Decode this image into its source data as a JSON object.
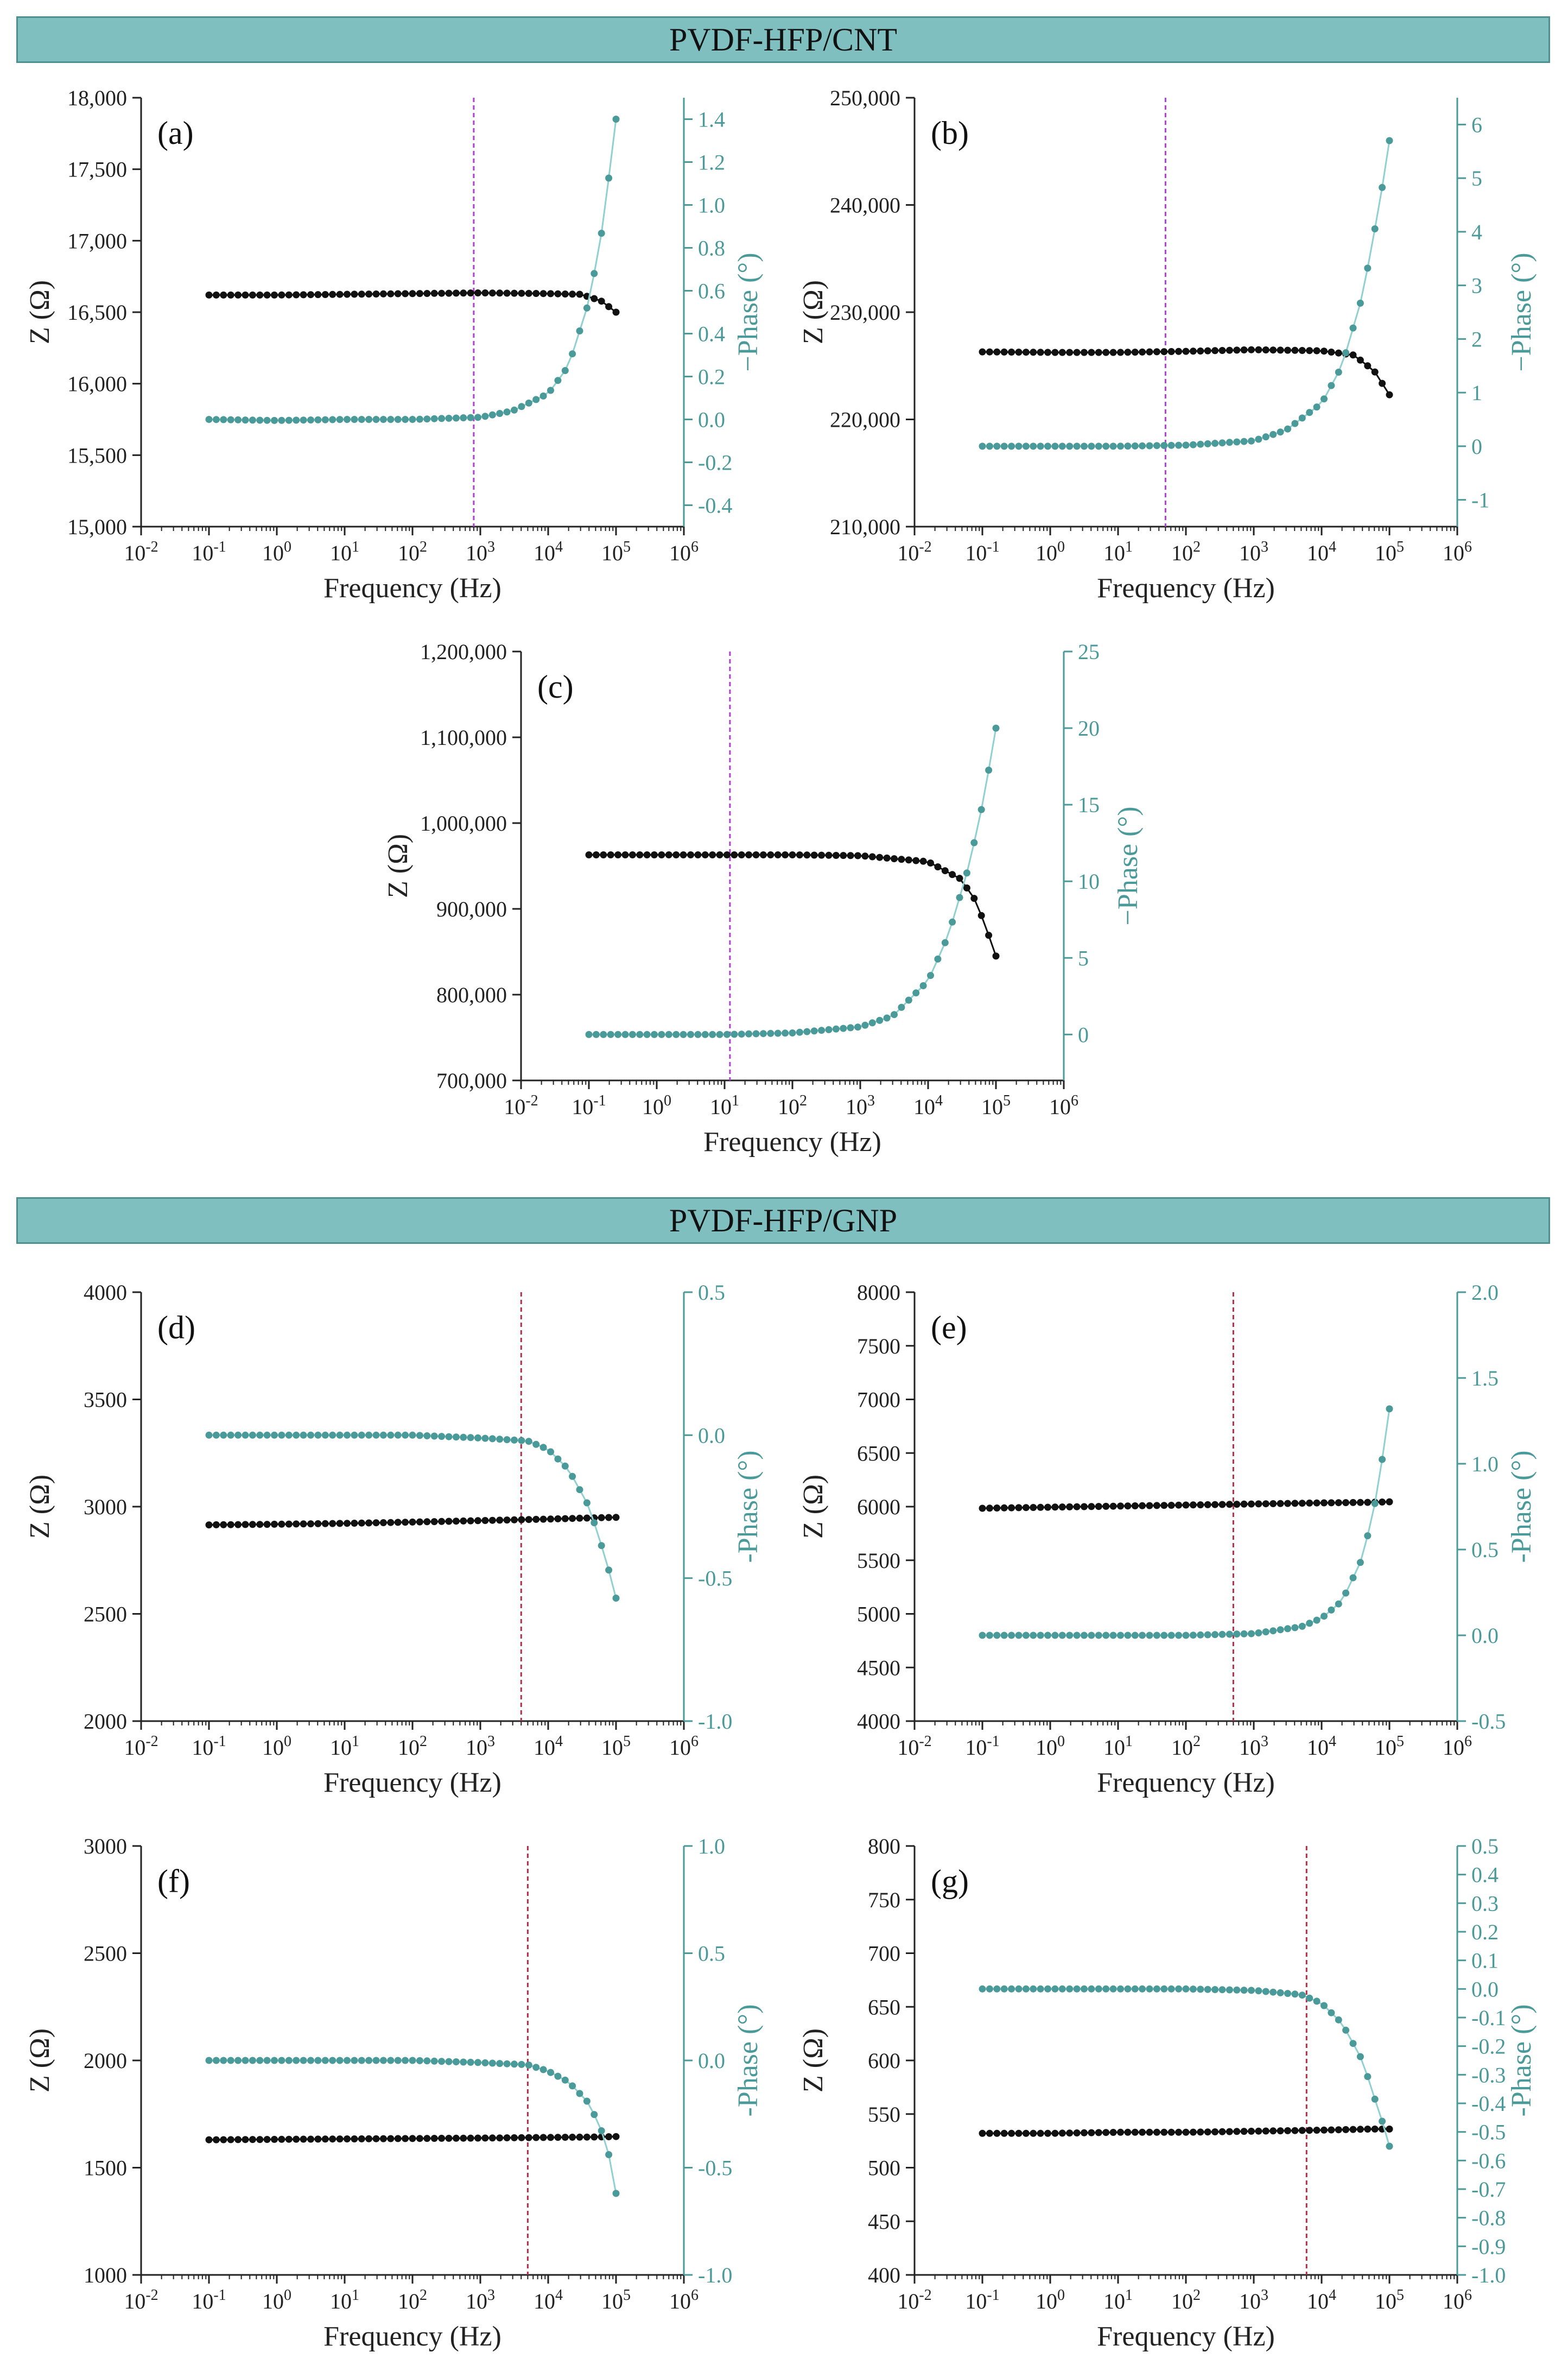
{
  "sections": [
    {
      "title": "PVDF-HFP/CNT"
    },
    {
      "title": "PVDF-HFP/GNP"
    }
  ],
  "colors": {
    "banner": "#7fbfbf",
    "impedance": "#111111",
    "phase": "#4a9a9a",
    "phase_line": "#8fd0d0",
    "marker_line": "#b040d0",
    "marker_line_gnp": "#b0304a"
  },
  "chart_data": [
    {
      "id": "a",
      "type": "scatter",
      "panel_label": "(a)",
      "xlabel": "Frequency (Hz)",
      "ylabel": "Z (Ω)",
      "y2label": "−Phase (°)",
      "xlim_exp": [
        -2,
        6
      ],
      "ylim": [
        15000,
        18000
      ],
      "yticks": [
        15000,
        15500,
        16000,
        16500,
        17000,
        17500,
        18000
      ],
      "ytick_labels": [
        "15,000",
        "15,500",
        "16,000",
        "16,500",
        "17,000",
        "17,500",
        "18,000"
      ],
      "y2lim": [
        -0.5,
        1.5
      ],
      "y2ticks": [
        -0.4,
        -0.2,
        0.0,
        0.2,
        0.4,
        0.6,
        0.8,
        1.0,
        1.2,
        1.4
      ],
      "y2tick_labels": [
        "-0.4",
        "-0.2",
        "0.0",
        "0.2",
        "0.4",
        "0.6",
        "0.8",
        "1.0",
        "1.2",
        "1.4"
      ],
      "vline_hz": 800,
      "vline_color": "#b040d0",
      "series": [
        {
          "name": "Z (Ω)",
          "axis": "left",
          "points": [
            [
              0.1,
              16620
            ],
            [
              1,
              16620
            ],
            [
              10,
              16625
            ],
            [
              100,
              16630
            ],
            [
              1000,
              16635
            ],
            [
              10000,
              16630
            ],
            [
              30000,
              16625
            ],
            [
              60000,
              16580
            ],
            [
              100000,
              16500
            ]
          ]
        },
        {
          "name": "−Phase (°)",
          "axis": "right",
          "points": [
            [
              0.1,
              0.0
            ],
            [
              1,
              -0.005
            ],
            [
              10,
              0.0
            ],
            [
              100,
              0.0
            ],
            [
              1000,
              0.01
            ],
            [
              3000,
              0.04
            ],
            [
              10000,
              0.12
            ],
            [
              20000,
              0.25
            ],
            [
              40000,
              0.55
            ],
            [
              60000,
              0.85
            ],
            [
              80000,
              1.15
            ],
            [
              100000,
              1.4
            ]
          ]
        }
      ]
    },
    {
      "id": "b",
      "type": "scatter",
      "panel_label": "(b)",
      "xlabel": "Frequency (Hz)",
      "ylabel": "Z (Ω)",
      "y2label": "−Phase (°)",
      "xlim_exp": [
        -2,
        6
      ],
      "ylim": [
        210000,
        250000
      ],
      "yticks": [
        210000,
        220000,
        230000,
        240000,
        250000
      ],
      "ytick_labels": [
        "210,000",
        "220,000",
        "230,000",
        "240,000",
        "250,000"
      ],
      "y2lim": [
        -1.5,
        6.5
      ],
      "y2ticks": [
        -1,
        0,
        1,
        2,
        3,
        4,
        5,
        6
      ],
      "y2tick_labels": [
        "-1",
        "0",
        "1",
        "2",
        "3",
        "4",
        "5",
        "6"
      ],
      "vline_hz": 50,
      "vline_color": "#b040d0",
      "series": [
        {
          "name": "Z (Ω)",
          "axis": "left",
          "points": [
            [
              0.1,
              226300
            ],
            [
              1,
              226250
            ],
            [
              10,
              226250
            ],
            [
              100,
              226350
            ],
            [
              1000,
              226500
            ],
            [
              10000,
              226400
            ],
            [
              30000,
              226000
            ],
            [
              60000,
              224500
            ],
            [
              100000,
              222300
            ]
          ]
        },
        {
          "name": "−Phase (°)",
          "axis": "right",
          "points": [
            [
              0.1,
              0.0
            ],
            [
              1,
              0.0
            ],
            [
              10,
              0.0
            ],
            [
              100,
              0.02
            ],
            [
              1000,
              0.1
            ],
            [
              3000,
              0.3
            ],
            [
              10000,
              0.8
            ],
            [
              20000,
              1.5
            ],
            [
              40000,
              2.8
            ],
            [
              60000,
              4.0
            ],
            [
              80000,
              4.9
            ],
            [
              100000,
              5.7
            ]
          ]
        }
      ]
    },
    {
      "id": "c",
      "type": "scatter",
      "panel_label": "(c)",
      "xlabel": "Frequency (Hz)",
      "ylabel": "Z (Ω)",
      "y2label": "−Phase (°)",
      "xlim_exp": [
        -2,
        6
      ],
      "ylim": [
        700000,
        1200000
      ],
      "yticks": [
        700000,
        800000,
        900000,
        1000000,
        1100000,
        1200000
      ],
      "ytick_labels": [
        "700,000",
        "800,000",
        "900,000",
        "1,000,000",
        "1,100,000",
        "1,200,000"
      ],
      "y2lim": [
        -3,
        25
      ],
      "y2ticks": [
        0,
        5,
        10,
        15,
        20,
        25
      ],
      "y2tick_labels": [
        "0",
        "5",
        "10",
        "15",
        "20",
        "25"
      ],
      "vline_hz": 12,
      "vline_color": "#b040d0",
      "series": [
        {
          "name": "Z (Ω)",
          "axis": "left",
          "points": [
            [
              0.1,
              963000
            ],
            [
              1,
              963000
            ],
            [
              10,
              963000
            ],
            [
              100,
              963000
            ],
            [
              1000,
              962000
            ],
            [
              10000,
              955000
            ],
            [
              30000,
              935000
            ],
            [
              50000,
              910000
            ],
            [
              70000,
              880000
            ],
            [
              100000,
              845000
            ]
          ]
        },
        {
          "name": "−Phase (°)",
          "axis": "right",
          "points": [
            [
              0.1,
              0.0
            ],
            [
              1,
              0.0
            ],
            [
              10,
              0.0
            ],
            [
              100,
              0.1
            ],
            [
              1000,
              0.5
            ],
            [
              3000,
              1.2
            ],
            [
              10000,
              3.5
            ],
            [
              20000,
              6.5
            ],
            [
              40000,
              11.0
            ],
            [
              60000,
              14.5
            ],
            [
              80000,
              17.5
            ],
            [
              100000,
              20.0
            ]
          ]
        }
      ]
    },
    {
      "id": "d",
      "type": "scatter",
      "panel_label": "(d)",
      "xlabel": "Frequency (Hz)",
      "ylabel": "Z (Ω)",
      "y2label": "-Phase (°)",
      "xlim_exp": [
        -2,
        6
      ],
      "ylim": [
        2000,
        4000
      ],
      "yticks": [
        2000,
        2500,
        3000,
        3500,
        4000
      ],
      "ytick_labels": [
        "2000",
        "2500",
        "3000",
        "3500",
        "4000"
      ],
      "y2lim": [
        -1.0,
        0.5
      ],
      "y2ticks": [
        -1.0,
        -0.5,
        0.0,
        0.5
      ],
      "y2tick_labels": [
        "-1.0",
        "-0.5",
        "0.0",
        "0.5"
      ],
      "vline_hz": 4000,
      "vline_color": "#b0304a",
      "series": [
        {
          "name": "Z (Ω)",
          "axis": "left",
          "points": [
            [
              0.1,
              2915
            ],
            [
              1,
              2918
            ],
            [
              10,
              2922
            ],
            [
              100,
              2928
            ],
            [
              1000,
              2935
            ],
            [
              10000,
              2942
            ],
            [
              50000,
              2948
            ],
            [
              100000,
              2950
            ]
          ]
        },
        {
          "name": "-Phase (°)",
          "axis": "right",
          "points": [
            [
              0.1,
              0.0
            ],
            [
              1,
              0.0
            ],
            [
              10,
              0.0
            ],
            [
              100,
              0.0
            ],
            [
              1000,
              -0.01
            ],
            [
              5000,
              -0.02
            ],
            [
              10000,
              -0.05
            ],
            [
              20000,
              -0.12
            ],
            [
              40000,
              -0.25
            ],
            [
              60000,
              -0.38
            ],
            [
              80000,
              -0.48
            ],
            [
              100000,
              -0.57
            ]
          ]
        }
      ]
    },
    {
      "id": "e",
      "type": "scatter",
      "panel_label": "(e)",
      "xlabel": "Frequency (Hz)",
      "ylabel": "Z (Ω)",
      "y2label": "-Phase (°)",
      "xlim_exp": [
        -2,
        6
      ],
      "ylim": [
        4000,
        8000
      ],
      "yticks": [
        4000,
        4500,
        5000,
        5500,
        6000,
        6500,
        7000,
        7500,
        8000
      ],
      "ytick_labels": [
        "4000",
        "4500",
        "5000",
        "5500",
        "6000",
        "6500",
        "7000",
        "7500",
        "8000"
      ],
      "y2lim": [
        -0.5,
        2.0
      ],
      "y2ticks": [
        -0.5,
        0.0,
        0.5,
        1.0,
        1.5,
        2.0
      ],
      "y2tick_labels": [
        "-0.5",
        "0.0",
        "0.5",
        "1.0",
        "1.5",
        "2.0"
      ],
      "vline_hz": 500,
      "vline_color": "#b0304a",
      "series": [
        {
          "name": "Z (Ω)",
          "axis": "left",
          "points": [
            [
              0.1,
              5985
            ],
            [
              1,
              5995
            ],
            [
              10,
              6005
            ],
            [
              100,
              6015
            ],
            [
              1000,
              6025
            ],
            [
              10000,
              6035
            ],
            [
              50000,
              6040
            ],
            [
              100000,
              6045
            ]
          ]
        },
        {
          "name": "-Phase (°)",
          "axis": "right",
          "points": [
            [
              0.1,
              0.0
            ],
            [
              1,
              0.0
            ],
            [
              10,
              0.0
            ],
            [
              100,
              0.0
            ],
            [
              1000,
              0.01
            ],
            [
              5000,
              0.05
            ],
            [
              10000,
              0.1
            ],
            [
              20000,
              0.2
            ],
            [
              40000,
              0.45
            ],
            [
              60000,
              0.75
            ],
            [
              80000,
              1.05
            ],
            [
              100000,
              1.32
            ]
          ]
        }
      ]
    },
    {
      "id": "f",
      "type": "scatter",
      "panel_label": "(f)",
      "xlabel": "Frequency (Hz)",
      "ylabel": "Z (Ω)",
      "y2label": "-Phase (°)",
      "xlim_exp": [
        -2,
        6
      ],
      "ylim": [
        1000,
        3000
      ],
      "yticks": [
        1000,
        1500,
        2000,
        2500,
        3000
      ],
      "ytick_labels": [
        "1000",
        "1500",
        "2000",
        "2500",
        "3000"
      ],
      "y2lim": [
        -1.0,
        1.0
      ],
      "y2ticks": [
        -1.0,
        -0.5,
        0.0,
        0.5,
        1.0
      ],
      "y2tick_labels": [
        "-1.0",
        "-0.5",
        "0.0",
        "0.5",
        "1.0"
      ],
      "vline_hz": 5000,
      "vline_color": "#b0304a",
      "series": [
        {
          "name": "Z (Ω)",
          "axis": "left",
          "points": [
            [
              0.1,
              1630
            ],
            [
              1,
              1632
            ],
            [
              10,
              1634
            ],
            [
              100,
              1636
            ],
            [
              1000,
              1638
            ],
            [
              10000,
              1641
            ],
            [
              50000,
              1643
            ],
            [
              100000,
              1645
            ]
          ]
        },
        {
          "name": "-Phase (°)",
          "axis": "right",
          "points": [
            [
              0.1,
              0.0
            ],
            [
              1,
              0.0
            ],
            [
              10,
              0.0
            ],
            [
              100,
              0.0
            ],
            [
              1000,
              -0.01
            ],
            [
              5000,
              -0.02
            ],
            [
              10000,
              -0.05
            ],
            [
              20000,
              -0.1
            ],
            [
              40000,
              -0.2
            ],
            [
              60000,
              -0.32
            ],
            [
              80000,
              -0.45
            ],
            [
              100000,
              -0.62
            ]
          ]
        }
      ]
    },
    {
      "id": "g",
      "type": "scatter",
      "panel_label": "(g)",
      "xlabel": "Frequency (Hz)",
      "ylabel": "Z (Ω)",
      "y2label": "-Phase (°)",
      "xlim_exp": [
        -2,
        6
      ],
      "ylim": [
        400,
        800
      ],
      "yticks": [
        400,
        450,
        500,
        550,
        600,
        650,
        700,
        750,
        800
      ],
      "ytick_labels": [
        "400",
        "450",
        "500",
        "550",
        "600",
        "650",
        "700",
        "750",
        "800"
      ],
      "y2lim": [
        -1.0,
        0.5
      ],
      "y2ticks": [
        -1.0,
        -0.9,
        -0.8,
        -0.7,
        -0.6,
        -0.5,
        -0.4,
        -0.3,
        -0.2,
        -0.1,
        0.0,
        0.1,
        0.2,
        0.3,
        0.4,
        0.5
      ],
      "y2tick_labels": [
        "-1.0",
        "-0.9",
        "-0.8",
        "-0.7",
        "-0.6",
        "-0.5",
        "-0.4",
        "-0.3",
        "-0.2",
        "-0.1",
        "0.0",
        "0.1",
        "0.2",
        "0.3",
        "0.4",
        "0.5"
      ],
      "vline_hz": 6000,
      "vline_color": "#b0304a",
      "series": [
        {
          "name": "Z (Ω)",
          "axis": "left",
          "points": [
            [
              0.1,
              532
            ],
            [
              1,
              532
            ],
            [
              10,
              533
            ],
            [
              100,
              533
            ],
            [
              1000,
              534
            ],
            [
              10000,
              535
            ],
            [
              50000,
              536
            ],
            [
              100000,
              536
            ]
          ]
        },
        {
          "name": "-Phase (°)",
          "axis": "right",
          "points": [
            [
              0.1,
              0.0
            ],
            [
              1,
              0.0
            ],
            [
              10,
              0.0
            ],
            [
              100,
              0.0
            ],
            [
              1000,
              -0.005
            ],
            [
              5000,
              -0.02
            ],
            [
              10000,
              -0.05
            ],
            [
              20000,
              -0.12
            ],
            [
              40000,
              -0.25
            ],
            [
              60000,
              -0.38
            ],
            [
              80000,
              -0.47
            ],
            [
              100000,
              -0.55
            ]
          ]
        }
      ]
    }
  ]
}
